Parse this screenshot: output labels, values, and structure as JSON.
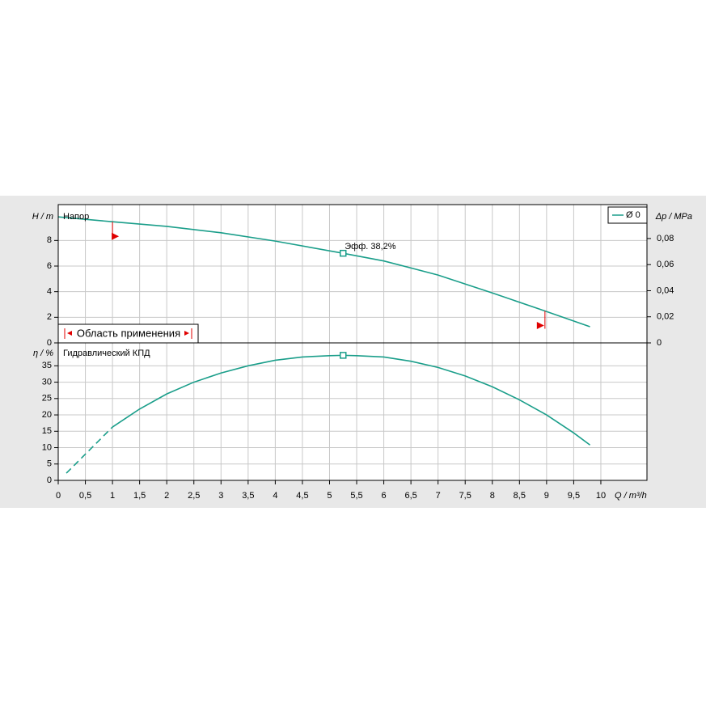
{
  "chart_data": [
    {
      "type": "line",
      "title": "Напор",
      "ylabel": "H / m",
      "y2label": "Δp / MPa",
      "x": [
        0,
        1,
        2,
        3,
        4,
        5.25,
        6,
        7,
        8,
        9,
        9.8
      ],
      "series": [
        {
          "name": "Ø 0",
          "color": "#1a9e8a",
          "values": [
            9.84,
            9.46,
            9.1,
            8.6,
            7.95,
            7.0,
            6.4,
            5.3,
            3.9,
            2.45,
            1.26
          ]
        }
      ],
      "xlim": [
        0,
        10.85
      ],
      "ylim": [
        0,
        10.8
      ],
      "yticks": [
        0,
        2,
        4,
        6,
        8
      ],
      "y2lim": [
        0,
        0.106
      ],
      "y2ticks": [
        0,
        {
          "value": 0.02,
          "label": "0,02"
        },
        {
          "value": 0.04,
          "label": "0,04"
        },
        {
          "value": 0.06,
          "label": "0,06"
        },
        {
          "value": 0.08,
          "label": "0,08"
        }
      ],
      "grid": true,
      "legend": "top-right",
      "annotation": {
        "text": "Эфф.  38,2%",
        "x": 5.25,
        "y": 7.0
      },
      "operating_range": {
        "label": "Область применения",
        "from": 1,
        "to": 8.97,
        "color": "#e00000"
      }
    },
    {
      "type": "line",
      "title": "Гидравлический КПД",
      "ylabel": "η / %",
      "xlabel": "Q / m³/h",
      "x": [
        0.15,
        0.5,
        1,
        1.5,
        2,
        2.5,
        3,
        3.5,
        4,
        4.5,
        5,
        5.25,
        5.5,
        6,
        6.5,
        7,
        7.5,
        8,
        8.5,
        9,
        9.5,
        9.8
      ],
      "series": [
        {
          "color": "#1a9e8a",
          "values": [
            2.2,
            8,
            16.3,
            21.8,
            26.4,
            30,
            32.8,
            35,
            36.7,
            37.7,
            38.1,
            38.2,
            38.1,
            37.7,
            36.4,
            34.5,
            31.9,
            28.6,
            24.6,
            20,
            14.5,
            10.8
          ]
        }
      ],
      "dashed_below_x": 1,
      "marker": {
        "x": 5.25,
        "y": 38.2
      },
      "xlim": [
        0,
        10.85
      ],
      "ylim": [
        0,
        42
      ],
      "yticks": [
        0,
        5,
        10,
        15,
        20,
        25,
        30,
        35
      ],
      "xticks": [
        0,
        {
          "value": 0.5,
          "label": "0,5"
        },
        1,
        {
          "value": 1.5,
          "label": "1,5"
        },
        2,
        {
          "value": 2.5,
          "label": "2,5"
        },
        3,
        {
          "value": 3.5,
          "label": "3,5"
        },
        4,
        {
          "value": 4.5,
          "label": "4,5"
        },
        5,
        {
          "value": 5.5,
          "label": "5,5"
        },
        6,
        {
          "value": 6.5,
          "label": "6,5"
        },
        7,
        {
          "value": 7.5,
          "label": "7,5"
        },
        8,
        {
          "value": 8.5,
          "label": "8,5"
        },
        9,
        {
          "value": 9.5,
          "label": "9,5"
        },
        10
      ],
      "grid": true
    }
  ]
}
